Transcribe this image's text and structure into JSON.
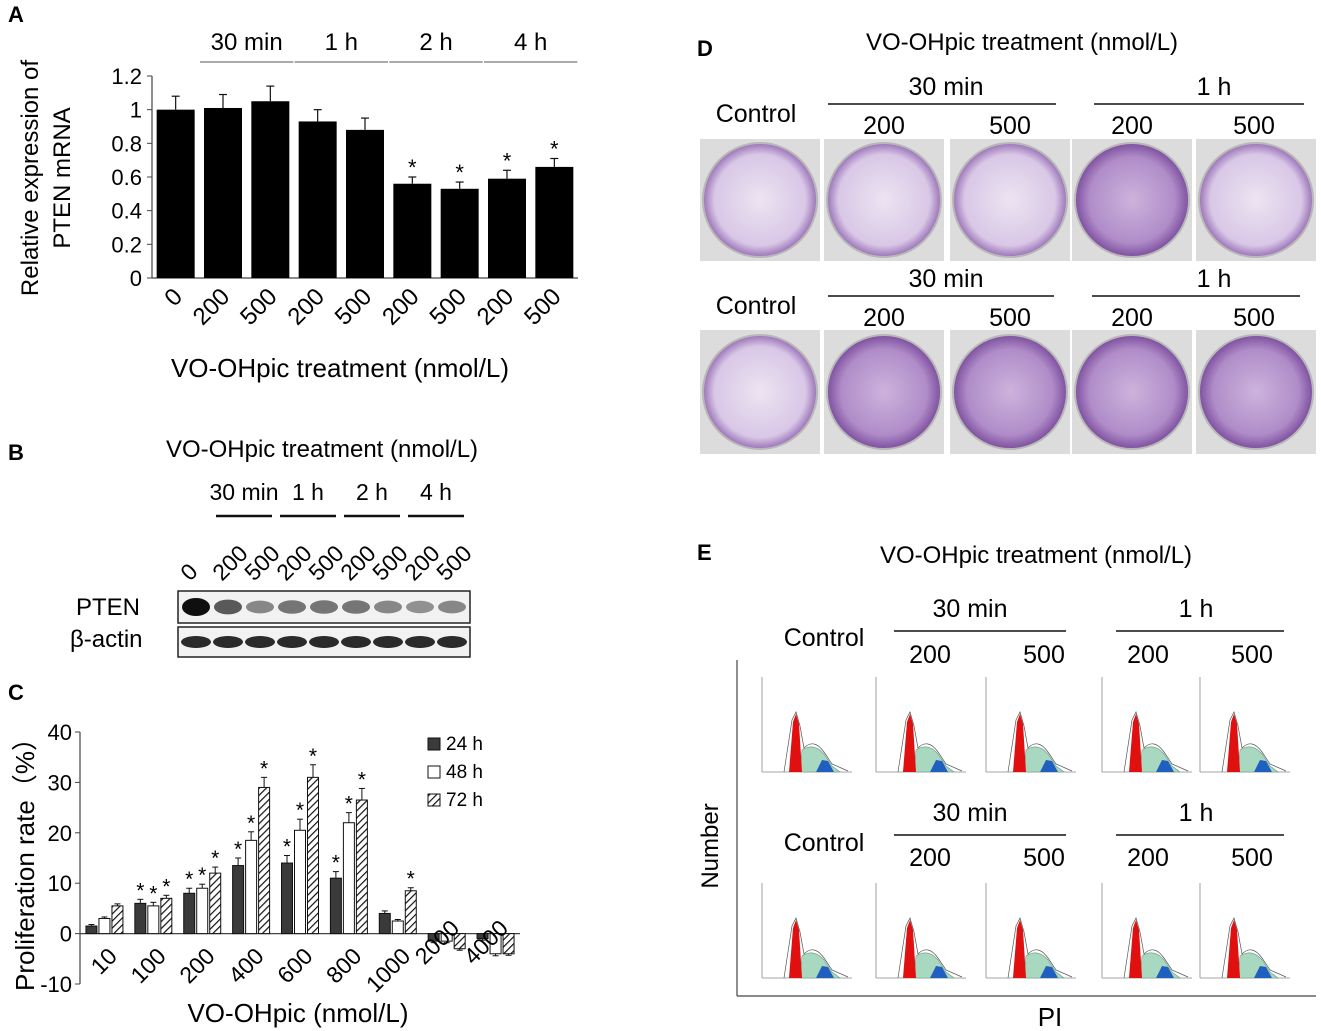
{
  "panels": {
    "A": "A",
    "B": "B",
    "C": "C",
    "D": "D",
    "E": "E"
  },
  "chart_data": [
    {
      "panel": "A",
      "type": "bar",
      "ylabel_line1": "Relative expression of",
      "ylabel_line2": "PTEN mRNA",
      "xlabel": "VO-OHpic treatment (nmol/L)",
      "categories": [
        "0",
        "200",
        "500",
        "200",
        "500",
        "200",
        "500",
        "200",
        "500"
      ],
      "values": [
        1.0,
        1.01,
        1.05,
        0.93,
        0.88,
        0.56,
        0.53,
        0.59,
        0.66
      ],
      "errors": [
        0.08,
        0.08,
        0.09,
        0.07,
        0.07,
        0.04,
        0.04,
        0.05,
        0.05
      ],
      "significant": [
        false,
        false,
        false,
        false,
        false,
        true,
        true,
        true,
        true
      ],
      "star": "*",
      "groups": [
        {
          "label": "30 min",
          "from": 1,
          "to": 2
        },
        {
          "label": "1 h",
          "from": 3,
          "to": 4
        },
        {
          "label": "2 h",
          "from": 5,
          "to": 6
        },
        {
          "label": "4 h",
          "from": 7,
          "to": 8
        }
      ],
      "ylim": [
        0,
        1.2
      ],
      "yticks": [
        "0",
        "0.2",
        "0.4",
        "0.6",
        "0.8",
        "1",
        "1.2"
      ],
      "ytick_values": [
        0,
        0.2,
        0.4,
        0.6,
        0.8,
        1.0,
        1.2
      ],
      "bar_color": "#000000"
    },
    {
      "panel": "C",
      "type": "bar",
      "ylabel": "Proliferation rate（%）",
      "xlabel": "VO-OHpic (nmol/L)",
      "categories": [
        "10",
        "100",
        "200",
        "400",
        "600",
        "800",
        "1000",
        "2000",
        "4000"
      ],
      "series": [
        {
          "name": "24 h",
          "values": [
            1.5,
            6,
            8,
            13.5,
            14,
            11,
            4,
            -1.5,
            -1
          ],
          "errors": [
            0.3,
            0.8,
            1,
            1.5,
            1.5,
            1.3,
            0.5,
            0.3,
            0.3
          ],
          "significant": [
            false,
            true,
            true,
            true,
            true,
            true,
            false,
            false,
            false
          ]
        },
        {
          "name": "48 h",
          "values": [
            3,
            5.5,
            9,
            18.5,
            20.5,
            22,
            2.5,
            -1.5,
            -4
          ],
          "errors": [
            0.3,
            0.7,
            0.8,
            1.7,
            2.2,
            2,
            0.3,
            0.3,
            0.4
          ],
          "significant": [
            false,
            true,
            true,
            true,
            true,
            true,
            false,
            false,
            false
          ]
        },
        {
          "name": "72 h",
          "values": [
            5.5,
            7,
            12,
            29,
            31,
            26.5,
            8.5,
            -3,
            -4
          ],
          "errors": [
            0.4,
            0.6,
            1.2,
            2,
            2.5,
            2.3,
            0.6,
            0.3,
            0.3
          ],
          "significant": [
            false,
            true,
            true,
            true,
            true,
            true,
            true,
            false,
            false
          ]
        }
      ],
      "star": "*",
      "ylim": [
        -10,
        40
      ],
      "yticks": [
        "-10",
        "0",
        "10",
        "20",
        "30",
        "40"
      ],
      "ytick_values": [
        -10,
        0,
        10,
        20,
        30,
        40
      ],
      "legend_position": "top-right"
    }
  ],
  "panel_b": {
    "title": "VO-OHpic treatment (nmol/L)",
    "groups": [
      "30 min",
      "1 h",
      "2 h",
      "4 h"
    ],
    "lanes": [
      "0",
      "200",
      "500",
      "200",
      "500",
      "200",
      "500",
      "200",
      "500"
    ],
    "rows": [
      "PTEN",
      "β-actin"
    ],
    "pten_intensity": [
      1.0,
      0.6,
      0.35,
      0.45,
      0.45,
      0.45,
      0.35,
      0.3,
      0.35
    ],
    "actin_intensity": [
      0.85,
      0.85,
      0.85,
      0.85,
      0.85,
      0.85,
      0.85,
      0.85,
      0.85
    ]
  },
  "panel_d": {
    "title": "VO-OHpic treatment (nmol/L)",
    "control": "Control",
    "t30": "30 min",
    "t1h": "1 h",
    "d200": "200",
    "d500": "500",
    "dish_color": "#8a5aa8",
    "dish_light": "#e6dcef"
  },
  "panel_e": {
    "title": "VO-OHpic treatment (nmol/L)",
    "control": "Control",
    "t30": "30 min",
    "t1h": "1 h",
    "d200": "200",
    "d500": "500",
    "ylabel": "Number",
    "xlabel": "PI",
    "g1_color": "#e01010",
    "s_color": "#a8d8c0",
    "g2_color": "#1f5fbf"
  }
}
